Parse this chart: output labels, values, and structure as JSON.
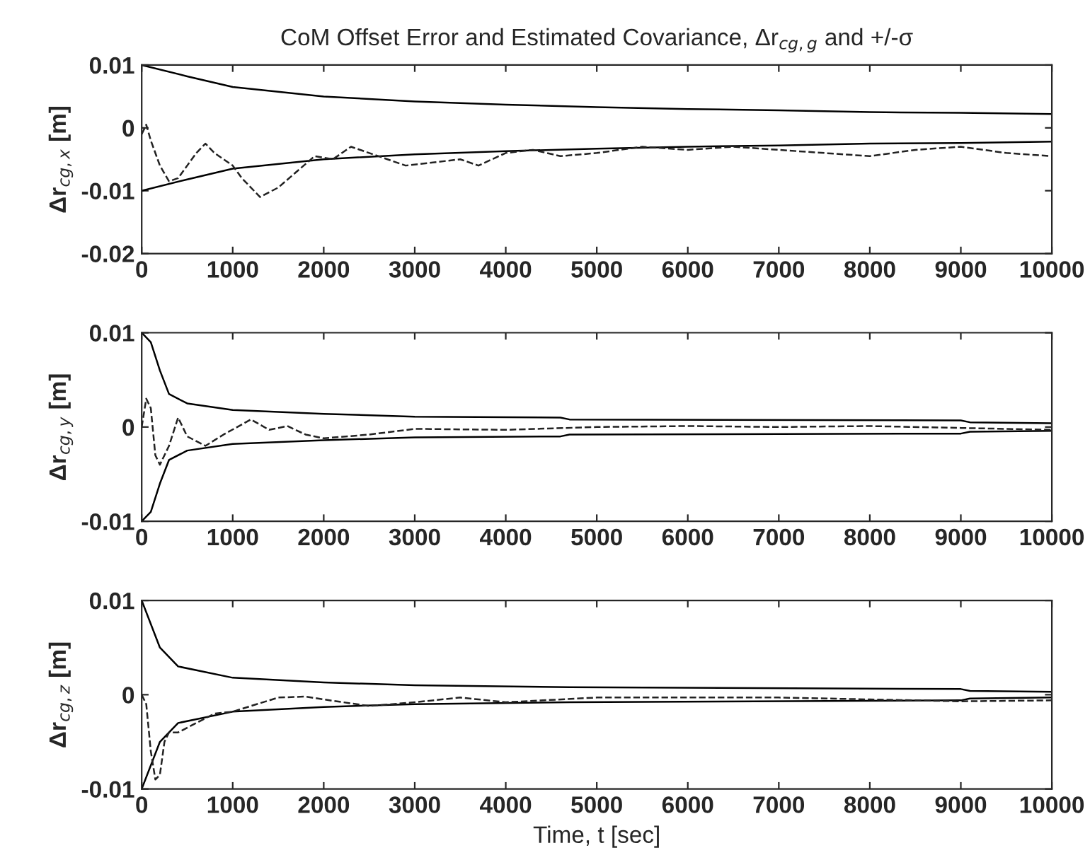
{
  "chart_data": [
    {
      "type": "line",
      "title": "CoM Offset Error and Estimated Covariance, Δr$_{cg,g}$ and +/-σ",
      "ylabel": "Δr$_{cg,x}$ [m]",
      "xlim": [
        0,
        10000
      ],
      "xticks": [
        0,
        1000,
        2000,
        3000,
        4000,
        5000,
        6000,
        7000,
        8000,
        9000,
        10000
      ],
      "ylim": [
        -0.02,
        0.01
      ],
      "yticks": [
        -0.02,
        -0.01,
        0,
        0.01
      ],
      "grid": false,
      "series": [
        {
          "color": "#000000",
          "line_style": "solid",
          "x": [
            0,
            500,
            1000,
            2000,
            3000,
            4000,
            5000,
            6000,
            7000,
            8000,
            9000,
            10000
          ],
          "values": [
            0.01,
            0.0082,
            0.0065,
            0.005,
            0.0042,
            0.0037,
            0.0033,
            0.003,
            0.0028,
            0.0025,
            0.0024,
            0.0022
          ]
        },
        {
          "color": "#000000",
          "line_style": "solid",
          "x": [
            0,
            500,
            1000,
            2000,
            3000,
            4000,
            5000,
            6000,
            7000,
            8000,
            9000,
            10000
          ],
          "values": [
            -0.01,
            -0.0082,
            -0.0065,
            -0.005,
            -0.0042,
            -0.0037,
            -0.0033,
            -0.003,
            -0.0028,
            -0.0025,
            -0.0024,
            -0.0022
          ]
        },
        {
          "color": "#222222",
          "line_style": "dashed",
          "x": [
            0,
            50,
            100,
            200,
            300,
            400,
            500,
            600,
            700,
            800,
            900,
            1000,
            1100,
            1300,
            1500,
            1700,
            1900,
            2100,
            2300,
            2500,
            2700,
            2900,
            3200,
            3500,
            3700,
            4000,
            4300,
            4600,
            5000,
            5500,
            6000,
            6500,
            7000,
            7500,
            8000,
            8500,
            9000,
            9500,
            10000
          ],
          "values": [
            -0.001,
            0.0005,
            -0.002,
            -0.006,
            -0.0085,
            -0.008,
            -0.006,
            -0.004,
            -0.0025,
            -0.004,
            -0.005,
            -0.006,
            -0.008,
            -0.011,
            -0.0095,
            -0.007,
            -0.0045,
            -0.005,
            -0.003,
            -0.004,
            -0.005,
            -0.006,
            -0.0055,
            -0.005,
            -0.006,
            -0.004,
            -0.0035,
            -0.0045,
            -0.004,
            -0.003,
            -0.0035,
            -0.003,
            -0.0035,
            -0.004,
            -0.0045,
            -0.0035,
            -0.003,
            -0.004,
            -0.0045
          ]
        }
      ]
    },
    {
      "type": "line",
      "ylabel": "Δr$_{cg,y}$ [m]",
      "xlim": [
        0,
        10000
      ],
      "xticks": [
        0,
        1000,
        2000,
        3000,
        4000,
        5000,
        6000,
        7000,
        8000,
        9000,
        10000
      ],
      "ylim": [
        -0.01,
        0.01
      ],
      "yticks": [
        -0.01,
        0,
        0.01
      ],
      "grid": false,
      "series": [
        {
          "color": "#000000",
          "line_style": "solid",
          "x": [
            0,
            100,
            200,
            300,
            500,
            1000,
            2000,
            3000,
            4600,
            4700,
            9000,
            9100,
            10000
          ],
          "values": [
            0.01,
            0.009,
            0.006,
            0.0035,
            0.0025,
            0.0018,
            0.0014,
            0.0011,
            0.001,
            0.0008,
            0.0007,
            0.0005,
            0.0004
          ]
        },
        {
          "color": "#000000",
          "line_style": "solid",
          "x": [
            0,
            100,
            200,
            300,
            500,
            1000,
            2000,
            3000,
            4600,
            4700,
            9000,
            9100,
            10000
          ],
          "values": [
            -0.01,
            -0.009,
            -0.006,
            -0.0035,
            -0.0025,
            -0.0018,
            -0.0014,
            -0.0011,
            -0.001,
            -0.0008,
            -0.0007,
            -0.0005,
            -0.0004
          ]
        },
        {
          "color": "#222222",
          "line_style": "dashed",
          "x": [
            0,
            50,
            100,
            150,
            200,
            300,
            400,
            500,
            700,
            900,
            1200,
            1400,
            1600,
            1800,
            2000,
            2500,
            3000,
            4000,
            5000,
            6000,
            7000,
            8000,
            9000,
            10000
          ],
          "values": [
            0,
            0.003,
            0.002,
            -0.003,
            -0.004,
            -0.002,
            0.001,
            -0.001,
            -0.002,
            -0.0008,
            0.0008,
            -0.0003,
            0.0001,
            -0.0008,
            -0.0012,
            -0.0008,
            -0.0002,
            -0.0003,
            0,
            0.0001,
            0,
            0.0001,
            -0.0001,
            -0.0003
          ]
        }
      ]
    },
    {
      "type": "line",
      "ylabel": "Δr$_{cg,z}$ [m]",
      "xlabel": "Time, t [sec]",
      "xlim": [
        0,
        10000
      ],
      "xticks": [
        0,
        1000,
        2000,
        3000,
        4000,
        5000,
        6000,
        7000,
        8000,
        9000,
        10000
      ],
      "ylim": [
        -0.01,
        0.01
      ],
      "yticks": [
        -0.01,
        0,
        0.01
      ],
      "grid": false,
      "series": [
        {
          "color": "#000000",
          "line_style": "solid",
          "x": [
            0,
            200,
            400,
            1000,
            2000,
            3000,
            4700,
            9000,
            9100,
            10000
          ],
          "values": [
            0.01,
            0.005,
            0.003,
            0.0018,
            0.0013,
            0.001,
            0.0008,
            0.0006,
            0.0004,
            0.0003
          ]
        },
        {
          "color": "#000000",
          "line_style": "solid",
          "x": [
            0,
            200,
            400,
            1000,
            2000,
            3000,
            4700,
            9000,
            9100,
            10000
          ],
          "values": [
            -0.01,
            -0.005,
            -0.003,
            -0.0018,
            -0.0013,
            -0.001,
            -0.0008,
            -0.0006,
            -0.0004,
            -0.0003
          ]
        },
        {
          "color": "#222222",
          "line_style": "dashed",
          "x": [
            0,
            50,
            100,
            150,
            200,
            250,
            300,
            400,
            600,
            800,
            1000,
            1200,
            1500,
            1800,
            2000,
            2500,
            3000,
            3500,
            4000,
            5000,
            6000,
            7000,
            8000,
            9000,
            10000
          ],
          "values": [
            0,
            -0.001,
            -0.006,
            -0.009,
            -0.0085,
            -0.005,
            -0.004,
            -0.004,
            -0.003,
            -0.002,
            -0.0018,
            -0.0012,
            -0.0003,
            -0.0002,
            -0.0005,
            -0.0012,
            -0.0008,
            -0.0003,
            -0.0008,
            -0.0003,
            -0.0003,
            -0.0003,
            -0.0005,
            -0.0007,
            -0.0006
          ]
        }
      ]
    }
  ]
}
